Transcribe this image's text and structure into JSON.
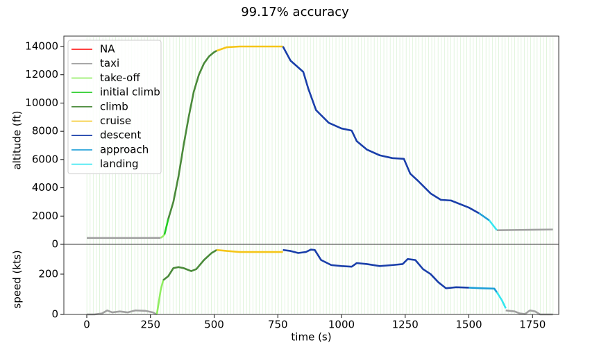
{
  "chart_data": [
    {
      "type": "line",
      "title": "99.17% accuracy",
      "ylabel": "altitude (ft)",
      "xlim": [
        -90,
        1853
      ],
      "ylim": [
        0,
        14737
      ],
      "yticks": [
        0,
        2000,
        4000,
        6000,
        8000,
        10000,
        12000,
        14000
      ],
      "legend": "upper left",
      "series": [
        {
          "name": "NA",
          "color": "#ff0000",
          "x": [],
          "values": []
        },
        {
          "name": "taxi",
          "color": "#a0a0a0",
          "x": [
            0,
            100,
            200,
            290,
            null,
            1610,
            1700,
            1830
          ],
          "values": [
            450,
            450,
            450,
            460,
            null,
            1000,
            1020,
            1050
          ]
        },
        {
          "name": "take-off",
          "color": "#90ee60",
          "x": [
            290,
            298,
            305
          ],
          "values": [
            460,
            550,
            700
          ]
        },
        {
          "name": "initial climb",
          "color": "#22cc22",
          "x": [
            305,
            312,
            320
          ],
          "values": [
            700,
            1200,
            1800
          ]
        },
        {
          "name": "climb",
          "color": "#4a8a3a",
          "x": [
            320,
            340,
            360,
            380,
            400,
            420,
            440,
            460,
            480,
            500,
            510
          ],
          "values": [
            1800,
            3000,
            4800,
            7000,
            9000,
            10800,
            12000,
            12800,
            13300,
            13600,
            13700
          ]
        },
        {
          "name": "cruise",
          "color": "#f5c518",
          "x": [
            510,
            550,
            600,
            700,
            770
          ],
          "values": [
            13700,
            13950,
            14000,
            14000,
            14000
          ]
        },
        {
          "name": "descent",
          "color": "#1a3faa",
          "x": [
            770,
            800,
            850,
            870,
            900,
            950,
            1000,
            1040,
            1060,
            1100,
            1150,
            1200,
            1245,
            1270,
            1300,
            1350,
            1390,
            1430,
            1500,
            1540
          ],
          "values": [
            14000,
            13000,
            12200,
            11000,
            9500,
            8600,
            8200,
            8050,
            7300,
            6700,
            6300,
            6100,
            6050,
            5000,
            4500,
            3600,
            3150,
            3100,
            2600,
            2200
          ]
        },
        {
          "name": "approach",
          "color": "#1e9fd8",
          "x": [
            1540,
            1580
          ],
          "values": [
            2200,
            1700
          ]
        },
        {
          "name": "landing",
          "color": "#33e6f0",
          "x": [
            1580,
            1610
          ],
          "values": [
            1700,
            1000
          ]
        }
      ]
    },
    {
      "type": "line",
      "ylabel": "speed (kts)",
      "xlabel": "time (s)",
      "xlim": [
        -90,
        1853
      ],
      "ylim": [
        0,
        348
      ],
      "yticks": [
        0,
        200
      ],
      "xticks": [
        0,
        250,
        500,
        750,
        1000,
        1250,
        1500,
        1750
      ],
      "series": [
        {
          "color": "#a0a0a0",
          "x": [
            0,
            30,
            60,
            80,
            100,
            130,
            160,
            190,
            230,
            260,
            275,
            null,
            1645,
            1680,
            1700,
            1720,
            1740,
            1760,
            1780,
            1830
          ],
          "values": [
            0,
            0,
            5,
            20,
            10,
            15,
            10,
            20,
            18,
            10,
            0,
            null,
            20,
            15,
            5,
            2,
            20,
            15,
            0,
            0
          ]
        },
        {
          "color": "#90ee60",
          "x": [
            275,
            290,
            300
          ],
          "values": [
            0,
            120,
            170
          ]
        },
        {
          "color": "#4a8a3a",
          "x": [
            300,
            320,
            340,
            360,
            380,
            410,
            430,
            460,
            490,
            510
          ],
          "values": [
            170,
            190,
            230,
            235,
            230,
            215,
            225,
            270,
            305,
            320
          ]
        },
        {
          "color": "#f5c518",
          "x": [
            510,
            550,
            600,
            770
          ],
          "values": [
            320,
            315,
            310,
            310
          ]
        },
        {
          "color": "#1a3faa",
          "x": [
            770,
            800,
            830,
            860,
            880,
            895,
            920,
            960,
            1000,
            1040,
            1060,
            1100,
            1150,
            1200,
            1240,
            1260,
            1290,
            1320,
            1350,
            1380,
            1410,
            1450,
            1500
          ],
          "values": [
            320,
            315,
            305,
            310,
            322,
            320,
            270,
            245,
            240,
            237,
            255,
            250,
            240,
            245,
            250,
            275,
            270,
            225,
            200,
            160,
            130,
            135,
            133
          ]
        },
        {
          "color": "#1e9fd8",
          "x": [
            1500,
            1550,
            1600,
            1610
          ],
          "values": [
            133,
            130,
            128,
            110
          ]
        },
        {
          "color": "#33e6f0",
          "x": [
            1610,
            1630,
            1645
          ],
          "values": [
            110,
            70,
            30
          ]
        }
      ]
    }
  ]
}
